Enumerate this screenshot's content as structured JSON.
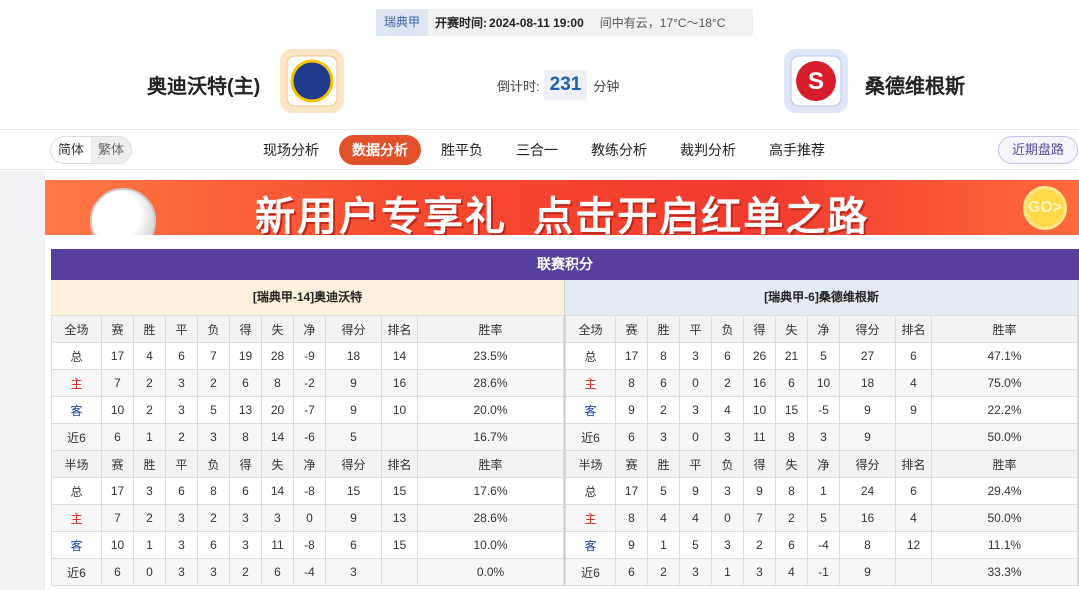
{
  "header": {
    "league": "瑞典甲",
    "time_label": "开赛时间:",
    "time": "2024-08-11 19:00",
    "weather": "间中有云，17°C～18°C",
    "home_team": "奥迪沃特(主)",
    "away_team": "桑德维根斯",
    "countdown_label": "倒计时:",
    "countdown": 231,
    "countdown_unit": "分钟"
  },
  "nav": {
    "languages": [
      "简体",
      "繁体"
    ],
    "tabs": [
      "现场分析",
      "数据分析",
      "胜平负",
      "三合一",
      "教练分析",
      "裁判分析",
      "高手推荐"
    ],
    "active_tab": 1,
    "right_button": "近期盘路"
  },
  "banner": {
    "text": "新用户专享礼  点击开启红单之路",
    "button": "GO>"
  },
  "standings": {
    "title": "联赛积分",
    "sides": [
      {
        "header": "[瑞典甲-14]奥迪沃特",
        "sections": [
          {
            "columns": [
              "全场",
              "赛",
              "胜",
              "平",
              "负",
              "得",
              "失",
              "净",
              "得分",
              "排名",
              "胜率"
            ],
            "rows": [
              [
                "总",
                17,
                4,
                6,
                7,
                19,
                28,
                -9,
                18,
                14,
                "23.5%"
              ],
              [
                "主",
                7,
                2,
                3,
                2,
                6,
                8,
                -2,
                9,
                16,
                "28.6%"
              ],
              [
                "客",
                10,
                2,
                3,
                5,
                13,
                20,
                -7,
                9,
                10,
                "20.0%"
              ],
              [
                "近6",
                6,
                1,
                2,
                3,
                8,
                14,
                -6,
                5,
                null,
                "16.7%"
              ]
            ]
          },
          {
            "columns": [
              "半场",
              "赛",
              "胜",
              "平",
              "负",
              "得",
              "失",
              "净",
              "得分",
              "排名",
              "胜率"
            ],
            "rows": [
              [
                "总",
                17,
                3,
                6,
                8,
                6,
                14,
                -8,
                15,
                15,
                "17.6%"
              ],
              [
                "主",
                7,
                2,
                3,
                2,
                3,
                3,
                0,
                9,
                13,
                "28.6%"
              ],
              [
                "客",
                10,
                1,
                3,
                6,
                3,
                11,
                -8,
                6,
                15,
                "10.0%"
              ],
              [
                "近6",
                6,
                0,
                3,
                3,
                2,
                6,
                -4,
                3,
                null,
                "0.0%"
              ]
            ]
          }
        ]
      },
      {
        "header": "[瑞典甲-6]桑德维根斯",
        "sections": [
          {
            "columns": [
              "全场",
              "赛",
              "胜",
              "平",
              "负",
              "得",
              "失",
              "净",
              "得分",
              "排名",
              "胜率"
            ],
            "rows": [
              [
                "总",
                17,
                8,
                3,
                6,
                26,
                21,
                5,
                27,
                6,
                "47.1%"
              ],
              [
                "主",
                8,
                6,
                0,
                2,
                16,
                6,
                10,
                18,
                4,
                "75.0%"
              ],
              [
                "客",
                9,
                2,
                3,
                4,
                10,
                15,
                -5,
                9,
                9,
                "22.2%"
              ],
              [
                "近6",
                6,
                3,
                0,
                3,
                11,
                8,
                3,
                9,
                null,
                "50.0%"
              ]
            ]
          },
          {
            "columns": [
              "半场",
              "赛",
              "胜",
              "平",
              "负",
              "得",
              "失",
              "净",
              "得分",
              "排名",
              "胜率"
            ],
            "rows": [
              [
                "总",
                17,
                5,
                9,
                3,
                9,
                8,
                1,
                24,
                6,
                "29.4%"
              ],
              [
                "主",
                8,
                4,
                4,
                0,
                7,
                2,
                5,
                16,
                4,
                "50.0%"
              ],
              [
                "客",
                9,
                1,
                5,
                3,
                2,
                6,
                -4,
                8,
                12,
                "11.1%"
              ],
              [
                "近6",
                6,
                2,
                3,
                1,
                3,
                4,
                -1,
                9,
                null,
                "33.3%"
              ]
            ]
          }
        ]
      }
    ]
  }
}
